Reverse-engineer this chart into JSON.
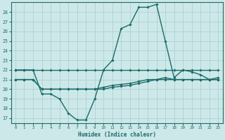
{
  "xlabel": "Humidex (Indice chaleur)",
  "xlim": [
    -0.5,
    23.5
  ],
  "ylim": [
    16.5,
    29
  ],
  "yticks": [
    17,
    18,
    19,
    20,
    21,
    22,
    23,
    24,
    25,
    26,
    27,
    28
  ],
  "xticks": [
    0,
    1,
    2,
    3,
    4,
    5,
    6,
    7,
    8,
    9,
    10,
    11,
    12,
    13,
    14,
    15,
    16,
    17,
    18,
    19,
    20,
    21,
    22,
    23
  ],
  "bg_color": "#cde8e8",
  "grid_color": "#aacccc",
  "line_color": "#1a6b6b",
  "lines": [
    {
      "x": [
        0,
        1,
        2,
        3,
        4,
        5,
        6,
        7,
        8,
        9,
        10,
        11,
        12,
        13,
        14,
        15,
        16,
        17,
        18,
        19,
        20,
        21,
        22,
        23
      ],
      "y": [
        22,
        22,
        22,
        19.5,
        19.5,
        19,
        17.5,
        16.8,
        16.8,
        19,
        22,
        23,
        26.3,
        26.7,
        28.5,
        28.5,
        28.8,
        25,
        21.2,
        22,
        21.8,
        21.5,
        21,
        21.2
      ]
    },
    {
      "x": [
        0,
        1,
        2,
        3,
        4,
        5,
        6,
        7,
        8,
        9,
        10,
        11,
        12,
        13,
        14,
        15,
        16,
        17,
        18,
        19,
        20,
        21,
        22,
        23
      ],
      "y": [
        22,
        22,
        22,
        22,
        22,
        22,
        22,
        22,
        22,
        22,
        22,
        22,
        22,
        22,
        22,
        22,
        22,
        22,
        22,
        22,
        22,
        22,
        22,
        22
      ]
    },
    {
      "x": [
        0,
        1,
        2,
        3,
        4,
        5,
        6,
        7,
        8,
        9,
        10,
        11,
        12,
        13,
        14,
        15,
        16,
        17,
        18,
        19,
        20,
        21,
        22,
        23
      ],
      "y": [
        21,
        21,
        21,
        20,
        20,
        20,
        20,
        20,
        20,
        20,
        20.2,
        20.4,
        20.5,
        20.6,
        20.8,
        21,
        21,
        21,
        21,
        21,
        21,
        21,
        21,
        21
      ]
    },
    {
      "x": [
        0,
        1,
        2,
        3,
        4,
        5,
        6,
        7,
        8,
        9,
        10,
        11,
        12,
        13,
        14,
        15,
        16,
        17,
        18,
        19,
        20,
        21,
        22,
        23
      ],
      "y": [
        21,
        21,
        21,
        20,
        20,
        20,
        20,
        20,
        20,
        20,
        20,
        20.2,
        20.3,
        20.4,
        20.6,
        20.8,
        21,
        21.2,
        21,
        21,
        21,
        21,
        21,
        21
      ]
    }
  ],
  "marker": "D",
  "markersize": 1.8,
  "linewidth": 1.0
}
